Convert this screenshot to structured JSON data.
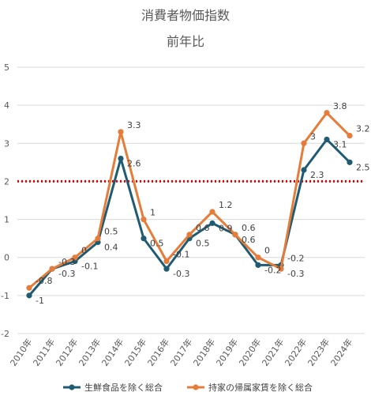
{
  "chart_data": {
    "type": "line",
    "title": "消費者物価指数",
    "subtitle": "前年比",
    "categories": [
      "2010年",
      "2011年",
      "2012年",
      "2013年",
      "2014年",
      "2015年",
      "2016年",
      "2017年",
      "2018年",
      "2019年",
      "2020年",
      "2021年",
      "2022年",
      "2023年",
      "2024年"
    ],
    "ylim": [
      -2,
      5
    ],
    "yticks": [
      "-2",
      "-1",
      "0",
      "1",
      "2",
      "3",
      "4",
      "5"
    ],
    "reference_line": {
      "value": 2,
      "color": "#e00000",
      "style": "dotted"
    },
    "grid": "horizontal",
    "legend": "bottom",
    "series": [
      {
        "name": "生鮮食品を除く総合",
        "color": "#1f5c74",
        "values": [
          -1,
          -0.3,
          -0.1,
          0.4,
          2.6,
          0.5,
          -0.3,
          0.5,
          0.9,
          0.6,
          -0.2,
          -0.2,
          2.3,
          3.1,
          2.5
        ],
        "labels": [
          "-1",
          "-0.3",
          "-0.1",
          "0.4",
          "2.6",
          "0.5",
          "-0.3",
          "0.5",
          "0.9",
          "0.6",
          "-0.2",
          "-0.2",
          "2.3",
          "3.1",
          "2.5"
        ]
      },
      {
        "name": "持家の帰属家賃を除く総合",
        "color": "#e57c3a",
        "values": [
          -0.8,
          -0.3,
          0,
          0.5,
          3.3,
          1,
          -0.1,
          0.6,
          1.2,
          0.6,
          0,
          -0.3,
          3,
          3.8,
          3.2
        ],
        "labels": [
          "-0.8",
          "-0.3",
          "0",
          "0.5",
          "3.3",
          "1",
          "-0.1",
          "0.6",
          "1.2",
          "0.6",
          "0",
          "-0.3",
          "3",
          "3.8",
          "3.2"
        ]
      }
    ]
  }
}
